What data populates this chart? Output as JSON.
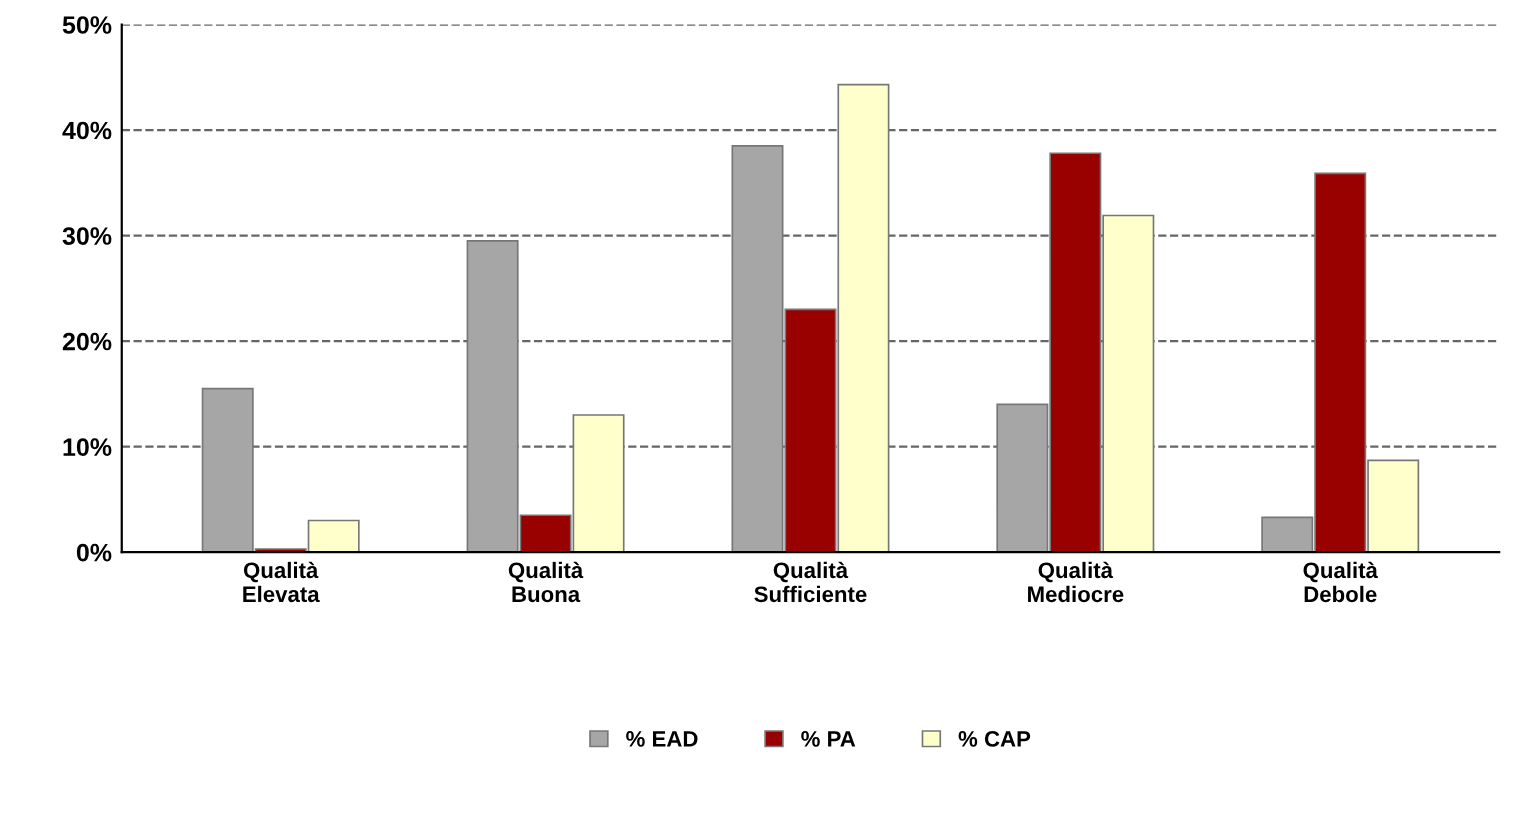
{
  "chart_data": {
    "type": "bar",
    "categories": [
      "Qualità\nElevata",
      "Qualità\nBuona",
      "Qualità\nSufficiente",
      "Qualità\nMediocre",
      "Qualità\nDebole"
    ],
    "series": [
      {
        "name": "% EAD",
        "color": "#a6a6a6",
        "values": [
          15.5,
          29.5,
          38.5,
          14,
          3.3
        ]
      },
      {
        "name": "% PA",
        "color": "#990000",
        "values": [
          0.3,
          3.5,
          23,
          37.8,
          35.9
        ]
      },
      {
        "name": "% CAP",
        "color": "#ffffcc",
        "values": [
          3,
          13,
          44.3,
          31.9,
          8.7
        ]
      }
    ],
    "ylim": [
      0,
      50
    ],
    "yticks": [
      {
        "value": 0,
        "label": "0%"
      },
      {
        "value": 10,
        "label": "10%"
      },
      {
        "value": 20,
        "label": "20%"
      },
      {
        "value": 30,
        "label": "30%"
      },
      {
        "value": 40,
        "label": "40%"
      },
      {
        "value": 50,
        "label": "50%"
      }
    ],
    "grid": "y",
    "legend": "bottom"
  }
}
